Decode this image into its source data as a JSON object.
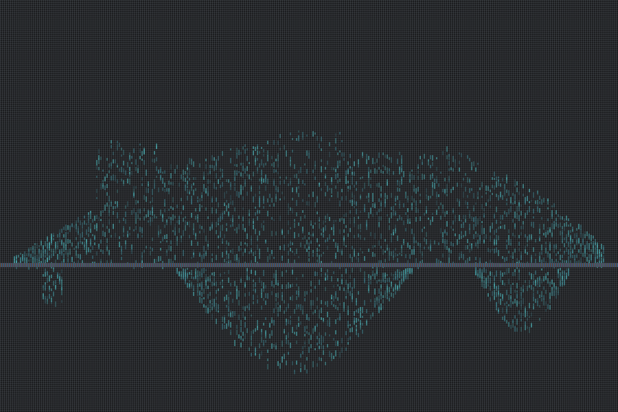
{
  "colors": {
    "background": "#1c1d1f",
    "signal": "#3fa5a8",
    "signal_dim": "#2e6f7a",
    "scanline_red": "#6f3a3a",
    "scanline_green": "#3a6f5a",
    "scanline_blue": "#3a4f8f"
  }
}
